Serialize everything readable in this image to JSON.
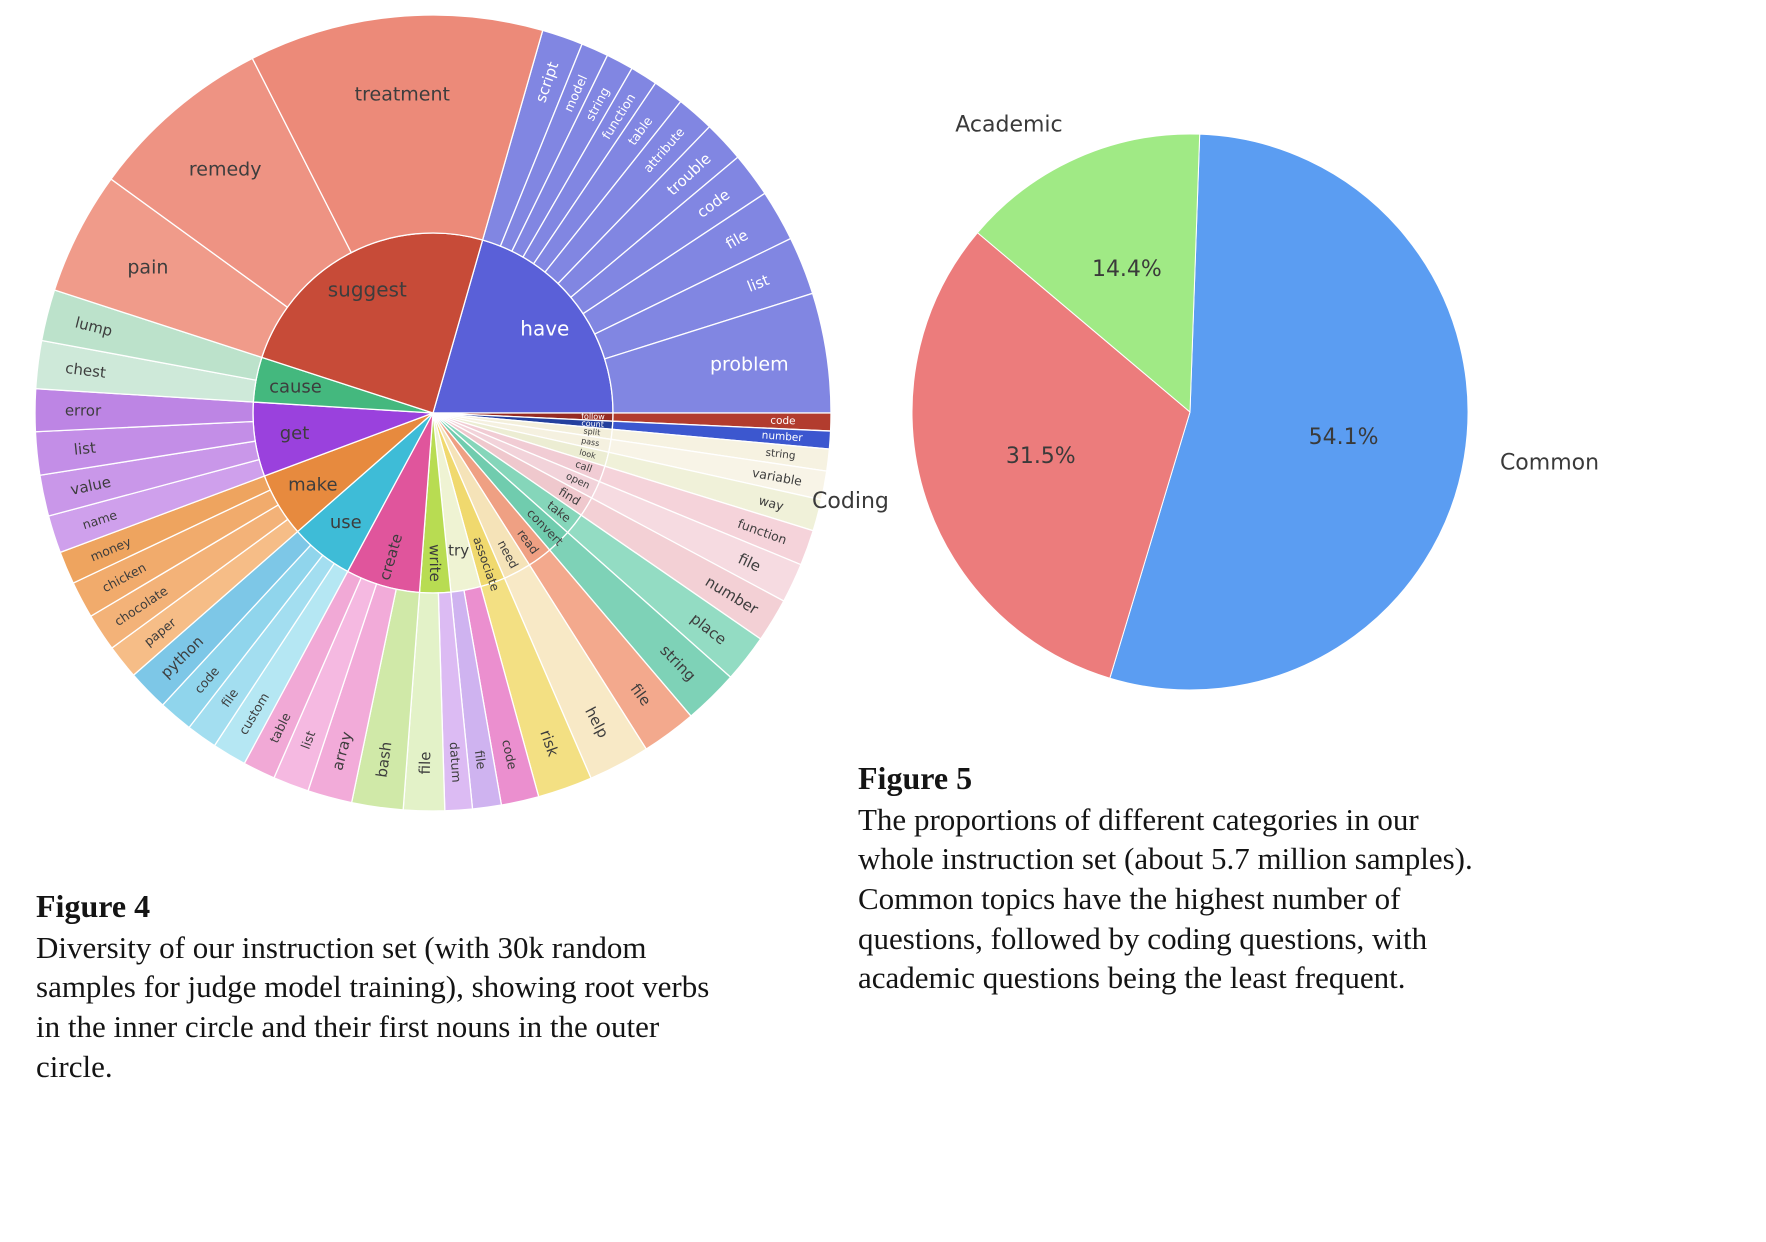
{
  "figure4": {
    "heading": "Figure 4",
    "caption": "Diversity of our instruction set (with 30k random samples for judge model training), showing root verbs in the inner circle and their first nouns in the outer circle."
  },
  "figure5": {
    "heading": "Figure 5",
    "caption": "The proportions of different categories in our whole instruction set (about 5.7 million samples). Common topics have the highest number of questions, followed by coding questions, with academic questions being the least frequent."
  },
  "chart_data": [
    {
      "type": "sunburst",
      "title": "",
      "inner_ring": "root verbs",
      "outer_ring": "first nouns",
      "start_angle_deg": 16,
      "verbs": [
        {
          "name": "have",
          "color": "#5a60d8",
          "label_color": "#ffffff",
          "children": [
            {
              "name": "script",
              "angle_deg": 6,
              "color": "#8186e2",
              "label_color": "#ffffff"
            },
            {
              "name": "model",
              "angle_deg": 4,
              "color": "#8186e2",
              "label_color": "#ffffff"
            },
            {
              "name": "string",
              "angle_deg": 4,
              "color": "#8186e2",
              "label_color": "#ffffff"
            },
            {
              "name": "function",
              "angle_deg": 4,
              "color": "#8186e2",
              "label_color": "#ffffff"
            },
            {
              "name": "table",
              "angle_deg": 4.5,
              "color": "#8186e2",
              "label_color": "#ffffff"
            },
            {
              "name": "attribute",
              "angle_deg": 5.5,
              "color": "#8186e2",
              "label_color": "#ffffff"
            },
            {
              "name": "trouble",
              "angle_deg": 6,
              "color": "#8186e2",
              "label_color": "#ffffff"
            },
            {
              "name": "code",
              "angle_deg": 6.5,
              "color": "#8186e2",
              "label_color": "#ffffff"
            },
            {
              "name": "file",
              "angle_deg": 7.5,
              "color": "#8186e2",
              "label_color": "#ffffff"
            },
            {
              "name": "list",
              "angle_deg": 8.5,
              "color": "#8186e2",
              "label_color": "#ffffff"
            },
            {
              "name": "problem",
              "angle_deg": 17.5,
              "color": "#8186e2",
              "label_color": "#ffffff"
            }
          ]
        },
        {
          "name": "follow",
          "color": "#962b23",
          "label_color": "#ffffff",
          "children": [
            {
              "name": "code",
              "angle_deg": 2.6,
              "color": "#b23c2e",
              "label_color": "#ffffff"
            }
          ]
        },
        {
          "name": "count",
          "color": "#24409e",
          "label_color": "#ffffff",
          "children": [
            {
              "name": "number",
              "angle_deg": 2.6,
              "color": "#3c57cf",
              "label_color": "#ffffff"
            }
          ]
        },
        {
          "name": "split",
          "color": "#f3efdb",
          "children": [
            {
              "name": "string",
              "angle_deg": 3.2,
              "color": "#f6f2e1"
            }
          ]
        },
        {
          "name": "pass",
          "color": "#f5f1e0",
          "children": [
            {
              "name": "variable",
              "angle_deg": 4.2,
              "color": "#f8f4e7"
            }
          ]
        },
        {
          "name": "look",
          "color": "#ecedd3",
          "children": [
            {
              "name": "way",
              "angle_deg": 4.6,
              "color": "#f0f1d9"
            }
          ]
        },
        {
          "name": "call",
          "color": "#f1ccd4",
          "children": [
            {
              "name": "function",
              "angle_deg": 5.2,
              "color": "#f5d3da"
            }
          ]
        },
        {
          "name": "open",
          "color": "#f2d3da",
          "children": [
            {
              "name": "file",
              "angle_deg": 5.8,
              "color": "#f6dbe1"
            }
          ]
        },
        {
          "name": "find",
          "color": "#efc8cd",
          "children": [
            {
              "name": "number",
              "angle_deg": 6.4,
              "color": "#f3d0d5"
            }
          ]
        },
        {
          "name": "take",
          "color": "#85d6ba",
          "children": [
            {
              "name": "place",
              "angle_deg": 7,
              "color": "#93dcc3"
            }
          ]
        },
        {
          "name": "convert",
          "color": "#70ccae",
          "children": [
            {
              "name": "string",
              "angle_deg": 8,
              "color": "#7ed2b7"
            }
          ]
        },
        {
          "name": "read",
          "color": "#efa083",
          "children": [
            {
              "name": "file",
              "angle_deg": 8,
              "color": "#f3a98d"
            }
          ]
        },
        {
          "name": "need",
          "color": "#f5e3b8",
          "children": [
            {
              "name": "help",
              "angle_deg": 9,
              "color": "#f8e9c6"
            }
          ]
        },
        {
          "name": "associate",
          "color": "#f0d96e",
          "children": [
            {
              "name": "risk",
              "angle_deg": 8,
              "color": "#f3e083"
            }
          ]
        },
        {
          "name": "try",
          "color": "#eff3d3",
          "lm": "h",
          "children": [
            {
              "name": "code",
              "angle_deg": 5.5,
              "color": "#eb8fcf"
            },
            {
              "name": "file",
              "angle_deg": 4.2,
              "color": "#cfb3f0"
            }
          ]
        },
        {
          "name": "write",
          "color": "#b8dc52",
          "children": [
            {
              "name": "datum",
              "angle_deg": 4,
              "color": "#dcbbf3"
            },
            {
              "name": "file",
              "angle_deg": 6,
              "color": "#e3f2c8"
            }
          ]
        },
        {
          "name": "create",
          "color": "#e0559c",
          "lm": "r",
          "children": [
            {
              "name": "bash",
              "angle_deg": 7.5,
              "color": "#d0e9a8"
            },
            {
              "name": "array",
              "angle_deg": 6.5,
              "color": "#f2abd9"
            },
            {
              "name": "list",
              "angle_deg": 5.25,
              "color": "#f5b9e1"
            },
            {
              "name": "table",
              "angle_deg": 4.75,
              "color": "#f1a9d6"
            }
          ]
        },
        {
          "name": "use",
          "color": "#3ebcd7",
          "children": [
            {
              "name": "custom",
              "angle_deg": 5,
              "color": "#b5e7f3"
            },
            {
              "name": "file",
              "angle_deg": 4.5,
              "color": "#a3def0"
            },
            {
              "name": "code",
              "angle_deg": 5,
              "color": "#90d5ec"
            },
            {
              "name": "python",
              "angle_deg": 6,
              "color": "#7dc7e7"
            }
          ]
        },
        {
          "name": "make",
          "color": "#e78a3e",
          "children": [
            {
              "name": "paper",
              "angle_deg": 5,
              "color": "#f6bd87"
            },
            {
              "name": "chocolate",
              "angle_deg": 5.5,
              "color": "#f3b278"
            },
            {
              "name": "chicken",
              "angle_deg": 5.4,
              "color": "#f1ab6c"
            },
            {
              "name": "money",
              "angle_deg": 4.8,
              "color": "#eea45f"
            }
          ]
        },
        {
          "name": "get",
          "color": "#9a41dd",
          "children": [
            {
              "name": "name",
              "angle_deg": 5.5,
              "color": "#cfa0ec"
            },
            {
              "name": "value",
              "angle_deg": 6,
              "color": "#c997e9"
            },
            {
              "name": "list",
              "angle_deg": 6.3,
              "color": "#c38ee7"
            },
            {
              "name": "error",
              "angle_deg": 6.2,
              "color": "#bd85e4"
            }
          ]
        },
        {
          "name": "cause",
          "color": "#44b87e",
          "children": [
            {
              "name": "chest",
              "angle_deg": 7,
              "color": "#cee9d9"
            },
            {
              "name": "lump",
              "angle_deg": 7.5,
              "color": "#bce2cb"
            }
          ]
        },
        {
          "name": "suggest",
          "color": "#c74b38",
          "children": [
            {
              "name": "pain",
              "angle_deg": 18,
              "color": "#f09b8a"
            },
            {
              "name": "remedy",
              "angle_deg": 27,
              "color": "#ee9383"
            },
            {
              "name": "treatment",
              "angle_deg": 43,
              "color": "#ec8a79"
            }
          ]
        }
      ]
    },
    {
      "type": "pie",
      "title": "",
      "start_angle_deg": 2,
      "slices": [
        {
          "label": "Common",
          "value_pct": 54.1,
          "pct_label": "54.1%",
          "color": "#5b9df2"
        },
        {
          "label": "Coding",
          "value_pct": 31.5,
          "pct_label": "31.5%",
          "color": "#ec7c7c"
        },
        {
          "label": "Academic",
          "value_pct": 14.4,
          "pct_label": "14.4%",
          "color": "#a0ea85"
        }
      ],
      "legend_position": "outside-labels"
    }
  ]
}
